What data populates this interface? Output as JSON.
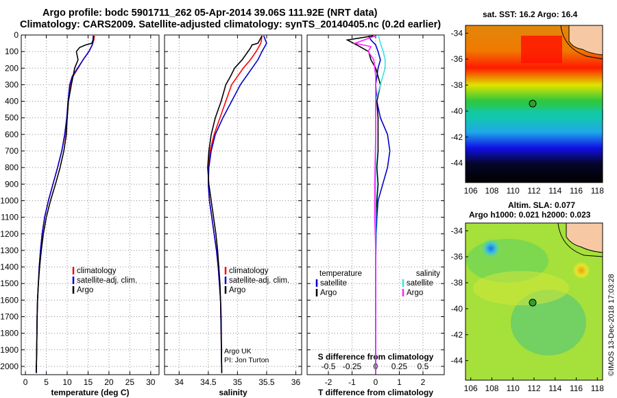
{
  "header": {
    "line1": "Argo profile: bodc 5901711_262 05-Apr-2014 39.06S 111.92E (NRT data)",
    "line2": "Climatology: CARS2009. Satellite-adjusted climatology: synTS_20140405.nc (0.2d earlier)"
  },
  "map_sst": {
    "title": "sat. SST: 16.2 Argo: 16.4"
  },
  "map_sla": {
    "title1": "Altim. SLA: 0.077",
    "title2": "Argo h1000: 0.021 h2000: 0.023"
  },
  "credit": {
    "line1": "Argo UK",
    "line2": "PI: Jon Turton"
  },
  "stamp": "©IMOS 13-Dec-2018 17:03:28",
  "legend_temp": [
    "climatology",
    "satellite-adj. clim.",
    "Argo"
  ],
  "legend_sal": [
    "climatology",
    "satellite-adj. clim.",
    "Argo"
  ],
  "legend_diff": {
    "temperature_head": "temperature",
    "salinity_head": "salinity",
    "temperature_items": [
      "satellite",
      "Argo"
    ],
    "salinity_items": [
      "satellite",
      "Argo"
    ]
  },
  "colors": {
    "climatology": "#ff0000",
    "satellite": "#0000cc",
    "argo": "#000000",
    "sal_satellite": "#33e5e5",
    "sal_argo": "#ff22ff",
    "land": "#f6c8a4"
  },
  "chart_data": [
    {
      "type": "line",
      "name": "temperature",
      "xlabel": "temperature (deg C)",
      "ylabel": "",
      "xlim": [
        -1,
        32
      ],
      "ylim": [
        2050,
        0
      ],
      "xticks": [
        0,
        5,
        10,
        15,
        20,
        25,
        30
      ],
      "yticks": [
        0,
        100,
        200,
        300,
        400,
        500,
        600,
        700,
        800,
        900,
        1000,
        1100,
        1200,
        1300,
        1400,
        1500,
        1600,
        1700,
        1800,
        1900,
        2000
      ],
      "grid": true,
      "series": [
        {
          "name": "climatology",
          "x": [
            16.5,
            16.4,
            16.0,
            15.2,
            13.8,
            12.6,
            11.4,
            10.7,
            10.3,
            10.0,
            9.5,
            8.7,
            7.7,
            6.6,
            5.5,
            4.6,
            4.0,
            3.6,
            3.3,
            3.1,
            2.9,
            2.8,
            2.7,
            2.6
          ],
          "y": [
            5,
            30,
            60,
            100,
            150,
            200,
            250,
            300,
            400,
            500,
            600,
            700,
            800,
            900,
            1000,
            1100,
            1200,
            1300,
            1400,
            1500,
            1600,
            1700,
            1900,
            2040
          ]
        },
        {
          "name": "satellite-adj. clim.",
          "x": [
            16.2,
            16.2,
            16.0,
            15.2,
            13.8,
            12.5,
            11.2,
            10.6,
            10.2,
            9.9,
            9.4,
            8.7,
            7.7,
            6.6,
            5.5,
            4.6,
            4.0,
            3.6,
            3.3,
            3.1,
            2.9,
            2.8,
            2.7,
            2.6
          ],
          "y": [
            5,
            30,
            60,
            100,
            150,
            200,
            250,
            300,
            400,
            500,
            600,
            700,
            800,
            900,
            1000,
            1100,
            1200,
            1300,
            1400,
            1500,
            1600,
            1700,
            1900,
            2040
          ]
        },
        {
          "name": "Argo",
          "x": [
            16.4,
            16.2,
            15.9,
            14.4,
            13.0,
            12.2,
            12.6,
            11.8,
            11.0,
            10.3,
            10.0,
            9.8,
            9.2,
            8.3,
            7.2,
            6.0,
            5.0,
            4.3,
            3.8,
            3.4,
            3.1,
            2.9,
            2.8,
            2.7,
            2.6
          ],
          "y": [
            5,
            30,
            50,
            60,
            75,
            100,
            150,
            200,
            300,
            400,
            500,
            600,
            700,
            800,
            900,
            1000,
            1100,
            1200,
            1300,
            1400,
            1500,
            1600,
            1700,
            1900,
            2040
          ]
        }
      ]
    },
    {
      "type": "line",
      "name": "salinity",
      "xlabel": "salinity",
      "ylabel": "",
      "xlim": [
        33.75,
        36.1
      ],
      "ylim": [
        2050,
        0
      ],
      "xticks": [
        34,
        34.5,
        35,
        35.5,
        36
      ],
      "grid": true,
      "series": [
        {
          "name": "climatology",
          "x": [
            35.42,
            35.4,
            35.32,
            35.22,
            35.1,
            35.0,
            34.9,
            34.8,
            34.7,
            34.6,
            34.53,
            34.5,
            34.5,
            34.52,
            34.56,
            34.6,
            34.64,
            34.67,
            34.69,
            34.71,
            34.72,
            34.73
          ],
          "y": [
            5,
            50,
            100,
            150,
            200,
            250,
            300,
            400,
            500,
            600,
            700,
            800,
            900,
            1000,
            1100,
            1200,
            1300,
            1400,
            1500,
            1600,
            1800,
            2040
          ]
        },
        {
          "name": "satellite-adj. clim.",
          "x": [
            35.45,
            35.5,
            35.42,
            35.35,
            35.25,
            35.15,
            35.05,
            34.9,
            34.75,
            34.62,
            34.55,
            34.51,
            34.5,
            34.52,
            34.56,
            34.6,
            34.64,
            34.67,
            34.69,
            34.71,
            34.72,
            34.73
          ],
          "y": [
            5,
            50,
            100,
            150,
            200,
            250,
            300,
            400,
            500,
            600,
            700,
            800,
            900,
            1000,
            1100,
            1200,
            1300,
            1400,
            1500,
            1600,
            1800,
            2040
          ]
        },
        {
          "name": "Argo",
          "x": [
            35.42,
            35.35,
            35.25,
            35.22,
            35.08,
            34.95,
            34.88,
            34.8,
            34.72,
            34.62,
            34.55,
            34.51,
            34.49,
            34.51,
            34.55,
            34.59,
            34.63,
            34.66,
            34.68,
            34.7,
            34.72,
            34.73
          ],
          "y": [
            5,
            50,
            60,
            80,
            150,
            200,
            250,
            300,
            400,
            500,
            600,
            700,
            800,
            900,
            1000,
            1100,
            1200,
            1300,
            1400,
            1500,
            1700,
            2040
          ]
        }
      ]
    },
    {
      "type": "line",
      "name": "difference",
      "xlabel": "T difference from climatology",
      "x2label": "S difference from climatology",
      "xlim": [
        -2.9,
        2.9
      ],
      "ylim": [
        2050,
        0
      ],
      "xticks": [
        -2,
        -1,
        0,
        1,
        2
      ],
      "x2ticks": [
        -0.5,
        -0.25,
        0,
        0.25,
        0.5
      ],
      "grid": true,
      "series": [
        {
          "name": "temperature satellite",
          "axis": "T",
          "x": [
            -0.3,
            -0.2,
            0.0,
            0.1,
            0.2,
            0.1,
            0.0,
            0.05,
            0.2,
            0.5,
            0.6,
            0.5,
            0.3,
            0.1,
            0.05,
            0.02,
            0.0,
            0.0,
            0.0,
            0.0
          ],
          "y": [
            5,
            30,
            60,
            100,
            150,
            200,
            300,
            400,
            500,
            600,
            700,
            800,
            900,
            1000,
            1100,
            1200,
            1400,
            1600,
            1800,
            2040
          ]
        },
        {
          "name": "temperature Argo",
          "axis": "T",
          "x": [
            -0.1,
            -1.2,
            -0.8,
            -0.3,
            -0.2,
            0.0,
            0.2,
            0.05,
            0.1,
            0.1,
            0.1,
            0.05,
            0.1,
            0.05,
            0.0,
            0.0,
            0.0,
            0.0,
            0.0,
            0.0
          ],
          "y": [
            5,
            30,
            60,
            100,
            150,
            200,
            300,
            400,
            500,
            600,
            700,
            800,
            900,
            1000,
            1100,
            1200,
            1400,
            1600,
            1800,
            2040
          ]
        },
        {
          "name": "salinity satellite",
          "axis": "S",
          "x": [
            0.03,
            0.05,
            0.08,
            0.1,
            0.1,
            0.05,
            0.0,
            0.0,
            0.0,
            0.0,
            0.0,
            0.0,
            0.0,
            0.0,
            0.0
          ],
          "y": [
            5,
            50,
            100,
            150,
            200,
            300,
            400,
            500,
            700,
            900,
            1100,
            1300,
            1500,
            1800,
            2040
          ]
        },
        {
          "name": "salinity Argo",
          "axis": "S",
          "x": [
            0.0,
            -0.22,
            -0.05,
            -0.08,
            -0.02,
            0.0,
            0.0,
            0.0,
            -0.01,
            -0.01,
            0.0,
            0.0,
            0.0,
            0.0,
            0.0
          ],
          "y": [
            5,
            50,
            70,
            100,
            150,
            250,
            400,
            600,
            900,
            1100,
            1300,
            1500,
            1700,
            1900,
            2040
          ]
        }
      ]
    },
    {
      "type": "heatmap",
      "name": "sat-sst-map",
      "xlim": [
        105.5,
        118.5
      ],
      "ylim": [
        -45.5,
        -33.4
      ],
      "xticks": [
        106,
        108,
        110,
        112,
        114,
        116,
        118
      ],
      "yticks": [
        -34,
        -36,
        -38,
        -40,
        -42,
        -44
      ],
      "float_position": {
        "lon": 112.0,
        "lat": -39.1
      }
    },
    {
      "type": "heatmap",
      "name": "altimetry-sla-map",
      "xlim": [
        105.5,
        118.5
      ],
      "ylim": [
        -45.5,
        -33.4
      ],
      "xticks": [
        106,
        108,
        110,
        112,
        114,
        116,
        118
      ],
      "yticks": [
        -34,
        -36,
        -38,
        -40,
        -42,
        -44
      ],
      "float_position": {
        "lon": 112.0,
        "lat": -39.1
      }
    }
  ]
}
